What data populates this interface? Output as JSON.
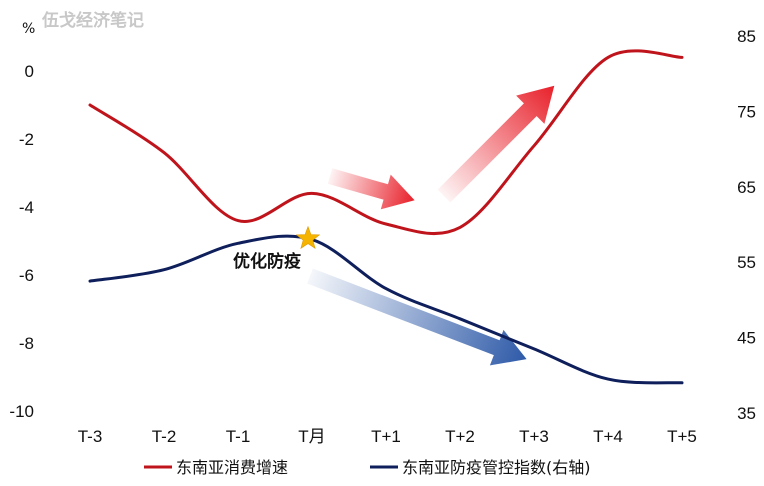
{
  "watermark": "伍戈经济笔记",
  "chart_data": {
    "type": "line",
    "categories": [
      "T-3",
      "T-2",
      "T-1",
      "T月",
      "T+1",
      "T+2",
      "T+3",
      "T+4",
      "T+5"
    ],
    "series": [
      {
        "name": "东南亚消费增速",
        "axis": "left",
        "color": "#c0141c",
        "values": [
          -1.0,
          -2.4,
          -4.4,
          -3.6,
          -4.5,
          -4.6,
          -2.2,
          0.4,
          0.4
        ]
      },
      {
        "name": "东南亚防疫管控指数(右轴)",
        "axis": "right",
        "color": "#0e1f5b",
        "values": [
          52.5,
          54.0,
          57.5,
          58.0,
          51.5,
          47.5,
          43.5,
          39.5,
          39.0
        ]
      }
    ],
    "y_left": {
      "unit": "%",
      "ylim": [
        -10,
        0.5
      ],
      "ticks": [
        "0",
        "-2",
        "-4",
        "-6",
        "-8",
        "-10"
      ]
    },
    "y_right": {
      "ylim": [
        35,
        86
      ],
      "ticks": [
        "85",
        "75",
        "65",
        "55",
        "45",
        "35"
      ]
    },
    "annotation": "优化防疫",
    "grid": false,
    "legend_position": "bottom"
  }
}
